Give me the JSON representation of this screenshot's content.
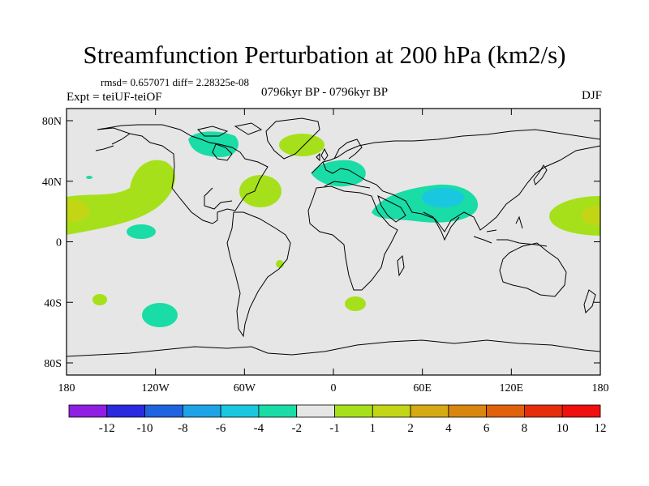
{
  "title": "Streamfunction Perturbation at 200 hPa (km2/s)",
  "stats": "rmsd= 0.657071 diff= 2.28325e-08",
  "experiment": "Expt = teiUF-teiOF",
  "period": "0796kyr BP - 0796kyr BP",
  "season": "DJF",
  "lat_ticks": [
    "80N",
    "40N",
    "0",
    "40S",
    "80S"
  ],
  "lon_ticks": [
    "180",
    "120W",
    "60W",
    "0",
    "60E",
    "120E",
    "180"
  ],
  "colorbar": {
    "colors": [
      "#8f1fe3",
      "#2a2ae0",
      "#1f63e0",
      "#1ea3e6",
      "#19c8e0",
      "#19dca6",
      "#e6e6e6",
      "#a6e01a",
      "#c3d616",
      "#d6aa12",
      "#d9860f",
      "#e0600c",
      "#e62d0a",
      "#f00f0f"
    ],
    "labels": [
      "-12",
      "-10",
      "-8",
      "-6",
      "-4",
      "-2",
      "-1",
      "1",
      "2",
      "4",
      "6",
      "8",
      "10",
      "12"
    ]
  }
}
